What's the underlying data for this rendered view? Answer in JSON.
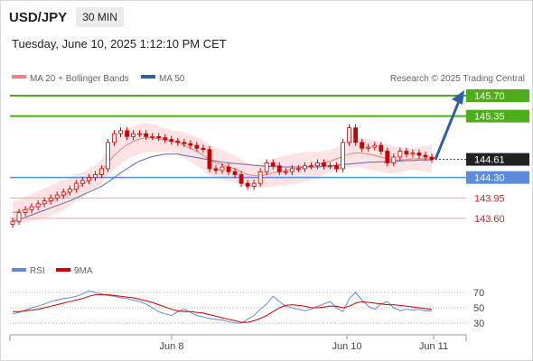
{
  "header": {
    "symbol": "USD/JPY",
    "timeframe": "30 MIN",
    "datetime": "Tuesday, June 10, 2025 1:12:10 PM CET"
  },
  "legend": {
    "ma20_label": "MA 20 + Bollinger Bands",
    "ma50_label": "MA 50",
    "credit": "Research © 2025 Trading Central",
    "rsi_label": "RSI",
    "ma9_label": "9MA"
  },
  "colors": {
    "ma20": "#f08080",
    "band_fill": "#fde0e0",
    "ma50": "#5c6bb0",
    "resistance": "#4caf1a",
    "pivot": "#5b8bd9",
    "support": "#f0a0a8",
    "support_text": "#cc2222",
    "arrow": "#2f5fa8",
    "candle": "#cc0000",
    "rsi": "#5b8bd9",
    "rsi_ma": "#cc0000"
  },
  "chart_data": [
    {
      "type": "candlestick",
      "title": "USD/JPY 30 MIN",
      "x_ticks": [
        "Jun 8",
        "Jun 10",
        "Jun 11"
      ],
      "ylim": [
        143.4,
        146.0
      ],
      "levels": [
        {
          "label": "145.70",
          "value": 145.7,
          "kind": "resistance"
        },
        {
          "label": "145.35",
          "value": 145.35,
          "kind": "resistance"
        },
        {
          "label": "144.61",
          "value": 144.61,
          "kind": "last_price"
        },
        {
          "label": "144.30",
          "value": 144.3,
          "kind": "pivot"
        },
        {
          "label": "143.95",
          "value": 143.95,
          "kind": "support"
        },
        {
          "label": "143.60",
          "value": 143.6,
          "kind": "support"
        }
      ],
      "projection": {
        "from": 144.61,
        "to": 145.7
      },
      "close": [
        143.55,
        143.7,
        143.75,
        143.8,
        143.85,
        143.9,
        143.95,
        144.0,
        144.05,
        144.1,
        144.2,
        144.25,
        144.3,
        144.35,
        144.45,
        144.9,
        145.05,
        145.1,
        145.0,
        145.05,
        145.05,
        145.0,
        145.0,
        144.98,
        144.95,
        144.92,
        144.9,
        144.88,
        144.85,
        144.8,
        144.78,
        144.45,
        144.42,
        144.48,
        144.4,
        144.35,
        144.2,
        144.15,
        144.2,
        144.4,
        144.55,
        144.5,
        144.4,
        144.4,
        144.45,
        144.45,
        144.5,
        144.5,
        144.55,
        144.5,
        144.5,
        144.45,
        144.9,
        145.15,
        144.9,
        144.8,
        144.82,
        144.85,
        144.75,
        144.55,
        144.65,
        144.75,
        144.7,
        144.72,
        144.68,
        144.65,
        144.61
      ],
      "series": [
        {
          "name": "MA 20",
          "values": [
            143.7,
            143.72,
            143.75,
            143.78,
            143.82,
            143.86,
            143.9,
            143.95,
            144.0,
            144.05,
            144.12,
            144.18,
            144.25,
            144.32,
            144.4,
            144.55,
            144.68,
            144.78,
            144.86,
            144.92,
            144.96,
            144.98,
            144.98,
            144.96,
            144.94,
            144.92,
            144.9,
            144.85,
            144.8,
            144.75,
            144.68,
            144.6,
            144.55,
            144.52,
            144.48,
            144.45,
            144.4,
            144.35,
            144.33,
            144.33,
            144.35,
            144.38,
            144.4,
            144.42,
            144.44,
            144.46,
            144.48,
            144.5,
            144.52,
            144.55,
            144.58,
            144.62,
            144.66,
            144.7,
            144.72,
            144.72,
            144.7,
            144.68,
            144.65,
            144.62,
            144.6,
            144.6,
            144.61,
            144.62,
            144.62,
            144.62,
            144.62
          ]
        },
        {
          "name": "MA 50",
          "values": [
            143.55,
            143.58,
            143.62,
            143.66,
            143.7,
            143.74,
            143.78,
            143.82,
            143.86,
            143.9,
            143.95,
            144.0,
            144.05,
            144.1,
            144.15,
            144.22,
            144.3,
            144.38,
            144.45,
            144.52,
            144.58,
            144.62,
            144.66,
            144.68,
            144.7,
            144.7,
            144.7,
            144.68,
            144.66,
            144.64,
            144.62,
            144.6,
            144.58,
            144.56,
            144.55,
            144.54,
            144.53,
            144.52,
            144.51,
            144.5,
            144.49,
            144.49,
            144.48,
            144.48,
            144.48,
            144.48,
            144.48,
            144.48,
            144.48,
            144.49,
            144.5,
            144.51,
            144.52,
            144.53,
            144.54,
            144.55,
            144.56,
            144.56,
            144.57,
            144.57,
            144.58,
            144.58,
            144.59,
            144.59,
            144.6,
            144.6,
            144.6
          ]
        }
      ]
    },
    {
      "type": "line",
      "ylim": [
        25,
        80
      ],
      "y_ticks": [
        30,
        50,
        70
      ],
      "series": [
        {
          "name": "RSI",
          "values": [
            42,
            44,
            47,
            50,
            52,
            55,
            58,
            60,
            62,
            63,
            65,
            68,
            72,
            70,
            68,
            66,
            65,
            63,
            62,
            60,
            58,
            55,
            50,
            45,
            42,
            40,
            45,
            48,
            44,
            40,
            38,
            36,
            35,
            34,
            32,
            30,
            30,
            35,
            40,
            48,
            55,
            65,
            58,
            52,
            50,
            48,
            46,
            48,
            52,
            55,
            58,
            50,
            45,
            62,
            70,
            60,
            52,
            48,
            55,
            58,
            50,
            46,
            48,
            47,
            48,
            46,
            46
          ]
        },
        {
          "name": "9MA",
          "values": [
            45,
            45,
            46,
            47,
            48,
            50,
            52,
            54,
            56,
            58,
            60,
            62,
            65,
            67,
            67,
            67,
            66,
            65,
            64,
            63,
            61,
            59,
            57,
            54,
            51,
            48,
            46,
            45,
            45,
            44,
            43,
            41,
            39,
            37,
            35,
            33,
            31,
            31,
            33,
            36,
            40,
            45,
            50,
            53,
            54,
            53,
            52,
            50,
            50,
            51,
            52,
            52,
            50,
            52,
            56,
            58,
            57,
            56,
            55,
            54,
            54,
            53,
            52,
            51,
            50,
            49,
            48
          ]
        }
      ]
    }
  ]
}
